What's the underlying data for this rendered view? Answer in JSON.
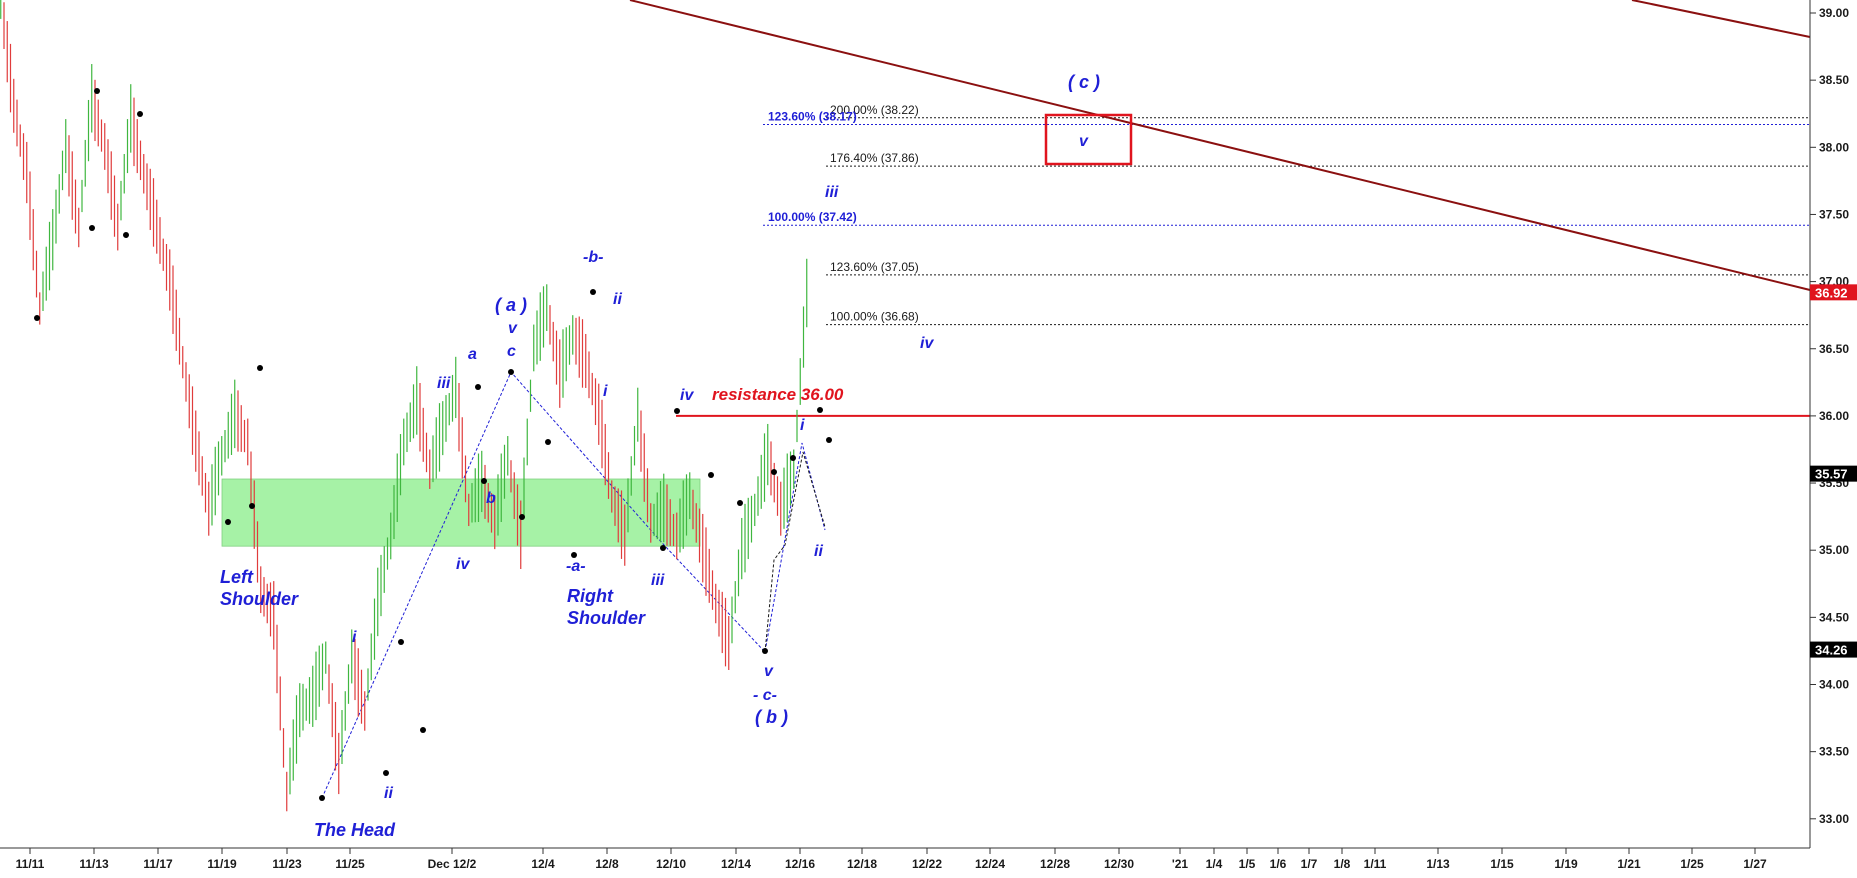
{
  "chart_data": {
    "type": "candlestick",
    "title": "",
    "xlabel": "",
    "ylabel": "",
    "ylim": [
      32.75,
      39.1
    ],
    "y_ticks": [
      "33.00",
      "33.50",
      "34.00",
      "34.50",
      "35.00",
      "35.50",
      "36.00",
      "36.50",
      "37.00",
      "37.50",
      "38.00",
      "38.50",
      "39.00"
    ],
    "x_tick_labels": [
      "11/11",
      "11/13",
      "11/17",
      "11/19",
      "11/23",
      "11/25",
      "Dec 12/2",
      "12/4",
      "12/8",
      "12/10",
      "12/14",
      "12/16",
      "12/18",
      "12/22",
      "12/24",
      "12/28",
      "12/30",
      "'21",
      "1/4",
      "1/5",
      "1/6",
      "1/7",
      "1/8",
      "1/11",
      "1/13",
      "1/15",
      "1/19",
      "1/21",
      "1/25",
      "1/27"
    ],
    "price_labels": [
      {
        "value": 36.92,
        "text": "36.92",
        "color": "#e0141e"
      },
      {
        "value": 35.57,
        "text": "35.57",
        "color": "#000000"
      },
      {
        "value": 34.26,
        "text": "34.26",
        "color": "#000000"
      }
    ],
    "price_series": [
      {
        "t": 0,
        "v": 39.1
      },
      {
        "t": 1,
        "v": 38.3
      },
      {
        "t": 2,
        "v": 37.8
      },
      {
        "t": 3,
        "v": 36.8
      },
      {
        "t": 4,
        "v": 37.3
      },
      {
        "t": 5,
        "v": 38.0
      },
      {
        "t": 6,
        "v": 37.4
      },
      {
        "t": 7,
        "v": 38.35
      },
      {
        "t": 8,
        "v": 38.0
      },
      {
        "t": 9,
        "v": 37.4
      },
      {
        "t": 10,
        "v": 38.2
      },
      {
        "t": 11,
        "v": 37.8
      },
      {
        "t": 12,
        "v": 37.4
      },
      {
        "t": 13,
        "v": 37.0
      },
      {
        "t": 14,
        "v": 36.4
      },
      {
        "t": 15,
        "v": 35.8
      },
      {
        "t": 16,
        "v": 35.3
      },
      {
        "t": 17,
        "v": 35.7
      },
      {
        "t": 18,
        "v": 36.0
      },
      {
        "t": 19,
        "v": 35.8
      },
      {
        "t": 20,
        "v": 34.7
      },
      {
        "t": 21,
        "v": 34.5
      },
      {
        "t": 22,
        "v": 33.2
      },
      {
        "t": 23,
        "v": 33.8
      },
      {
        "t": 24,
        "v": 33.9
      },
      {
        "t": 25,
        "v": 34.2
      },
      {
        "t": 26,
        "v": 33.4
      },
      {
        "t": 27,
        "v": 34.2
      },
      {
        "t": 28,
        "v": 33.8
      },
      {
        "t": 29,
        "v": 34.6
      },
      {
        "t": 30,
        "v": 35.1
      },
      {
        "t": 31,
        "v": 35.8
      },
      {
        "t": 32,
        "v": 36.1
      },
      {
        "t": 33,
        "v": 35.6
      },
      {
        "t": 34,
        "v": 35.9
      },
      {
        "t": 35,
        "v": 36.2
      },
      {
        "t": 36,
        "v": 35.3
      },
      {
        "t": 37,
        "v": 35.5
      },
      {
        "t": 38,
        "v": 35.2
      },
      {
        "t": 39,
        "v": 35.7
      },
      {
        "t": 40,
        "v": 35.1
      },
      {
        "t": 41,
        "v": 36.5
      },
      {
        "t": 42,
        "v": 36.8
      },
      {
        "t": 43,
        "v": 36.3
      },
      {
        "t": 44,
        "v": 36.6
      },
      {
        "t": 45,
        "v": 36.4
      },
      {
        "t": 46,
        "v": 36.0
      },
      {
        "t": 47,
        "v": 35.4
      },
      {
        "t": 48,
        "v": 35.1
      },
      {
        "t": 49,
        "v": 36.0
      },
      {
        "t": 50,
        "v": 35.2
      },
      {
        "t": 51,
        "v": 35.3
      },
      {
        "t": 52,
        "v": 35.1
      },
      {
        "t": 53,
        "v": 35.4
      },
      {
        "t": 54,
        "v": 35.0
      },
      {
        "t": 55,
        "v": 34.6
      },
      {
        "t": 56,
        "v": 34.3
      },
      {
        "t": 57,
        "v": 35.0
      },
      {
        "t": 58,
        "v": 35.3
      },
      {
        "t": 59,
        "v": 35.7
      },
      {
        "t": 60,
        "v": 35.3
      },
      {
        "t": 61,
        "v": 35.6
      },
      {
        "t": 62,
        "v": 36.9
      }
    ],
    "horizontal_lines": [
      {
        "value": 36.0,
        "label": "resistance 36.00",
        "color": "#e0141e",
        "style": "solid"
      },
      {
        "value": 38.22,
        "label": "200.00% (38.22)",
        "color": "#1a1a1a",
        "style": "dotted"
      },
      {
        "value": 38.17,
        "label": "123.60% (38.17)",
        "color": "#1f1fd6",
        "style": "dotted"
      },
      {
        "value": 37.86,
        "label": "176.40% (37.86)",
        "color": "#1a1a1a",
        "style": "dotted"
      },
      {
        "value": 37.42,
        "label": "100.00% (37.42)",
        "color": "#1f1fd6",
        "style": "dotted"
      },
      {
        "value": 37.05,
        "label": "123.60% (37.05)",
        "color": "#1a1a1a",
        "style": "dotted"
      },
      {
        "value": 36.68,
        "label": "100.00% (36.68)",
        "color": "#1a1a1a",
        "style": "dotted"
      }
    ],
    "shaded_zone": {
      "from": 35.03,
      "to": 35.53,
      "color": "#a6f2a6"
    },
    "target_box_value": 38.05,
    "trendlines": [
      {
        "color": "#8b1010",
        "from_value": 39.16,
        "to_value": 38.8,
        "segment": "upper_left"
      },
      {
        "color": "#8b1010",
        "from_value": 39.1,
        "to_value": 36.9,
        "segment": "main"
      }
    ],
    "wave_annotations": [
      {
        "text": "Left",
        "size": "large"
      },
      {
        "text": "Shoulder",
        "size": "large"
      },
      {
        "text": "The Head",
        "size": "large"
      },
      {
        "text": "Right",
        "size": "large"
      },
      {
        "text": "Shoulder",
        "size": "large"
      },
      {
        "text": "i",
        "size": "small"
      },
      {
        "text": "ii",
        "size": "small"
      },
      {
        "text": "iii",
        "size": "small"
      },
      {
        "text": "iv",
        "size": "small"
      },
      {
        "text": "a",
        "size": "small"
      },
      {
        "text": "b",
        "size": "small"
      },
      {
        "text": "( a )",
        "size": "large"
      },
      {
        "text": "v",
        "size": "small"
      },
      {
        "text": "c",
        "size": "small"
      },
      {
        "text": "-a-",
        "size": "small"
      },
      {
        "text": "-b-",
        "size": "small"
      },
      {
        "text": "ii",
        "size": "small"
      },
      {
        "text": "i",
        "size": "small"
      },
      {
        "text": "iv",
        "size": "small"
      },
      {
        "text": "iii",
        "size": "small"
      },
      {
        "text": "v",
        "size": "small"
      },
      {
        "text": "- c-",
        "size": "small"
      },
      {
        "text": "( b )",
        "size": "large"
      },
      {
        "text": "i",
        "size": "small"
      },
      {
        "text": "ii",
        "size": "small"
      },
      {
        "text": "iii",
        "size": "small"
      },
      {
        "text": "iv",
        "size": "small"
      },
      {
        "text": "( c )",
        "size": "large"
      },
      {
        "text": "v",
        "size": "small"
      }
    ]
  }
}
